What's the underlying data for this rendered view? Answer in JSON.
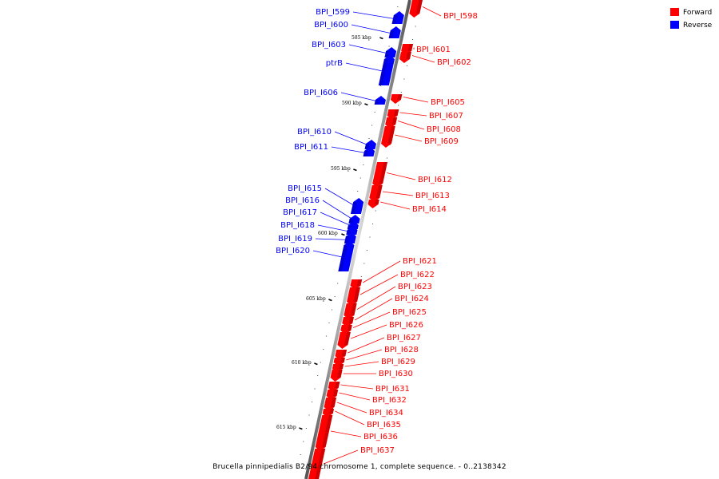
{
  "caption": "Brucella pinnipedialis B2/94 chromosome 1, complete sequence. - 0..2138342",
  "legend": [
    {
      "label": "Forward",
      "color": "#ff0000"
    },
    {
      "label": "Reverse",
      "color": "#0000ff"
    }
  ],
  "colors": {
    "forward": "#ff0000",
    "reverse": "#0000ff",
    "backbone": "#888888"
  },
  "kbp_ticks": [
    {
      "label": "585 kbp"
    },
    {
      "label": "590 kbp"
    },
    {
      "label": "595 kbp"
    },
    {
      "label": "600 kbp"
    },
    {
      "label": "605 kbp"
    },
    {
      "label": "610 kbp"
    },
    {
      "label": "615 kbp"
    }
  ],
  "reverse_genes": [
    {
      "label": "BPI_I599"
    },
    {
      "label": "BPI_I600"
    },
    {
      "label": "BPI_I603"
    },
    {
      "label": "ptrB"
    },
    {
      "label": "BPI_I606"
    },
    {
      "label": "BPI_I610"
    },
    {
      "label": "BPI_I611"
    },
    {
      "label": "BPI_I615"
    },
    {
      "label": "BPI_I616"
    },
    {
      "label": "BPI_I617"
    },
    {
      "label": "BPI_I618"
    },
    {
      "label": "BPI_I619"
    },
    {
      "label": "BPI_I620"
    }
  ],
  "forward_genes": [
    {
      "label": "BPI_I598"
    },
    {
      "label": "BPI_I601"
    },
    {
      "label": "BPI_I602"
    },
    {
      "label": "BPI_I605"
    },
    {
      "label": "BPI_I607"
    },
    {
      "label": "BPI_I608"
    },
    {
      "label": "BPI_I609"
    },
    {
      "label": "BPI_I612"
    },
    {
      "label": "BPI_I613"
    },
    {
      "label": "BPI_I614"
    },
    {
      "label": "BPI_I621"
    },
    {
      "label": "BPI_I622"
    },
    {
      "label": "BPI_I623"
    },
    {
      "label": "BPI_I624"
    },
    {
      "label": "BPI_I625"
    },
    {
      "label": "BPI_I626"
    },
    {
      "label": "BPI_I627"
    },
    {
      "label": "BPI_I628"
    },
    {
      "label": "BPI_I629"
    },
    {
      "label": "BPI_I630"
    },
    {
      "label": "BPI_I631"
    },
    {
      "label": "BPI_I632"
    },
    {
      "label": "BPI_I634"
    },
    {
      "label": "BPI_I635"
    },
    {
      "label": "BPI_I636"
    },
    {
      "label": "BPI_I637"
    }
  ]
}
